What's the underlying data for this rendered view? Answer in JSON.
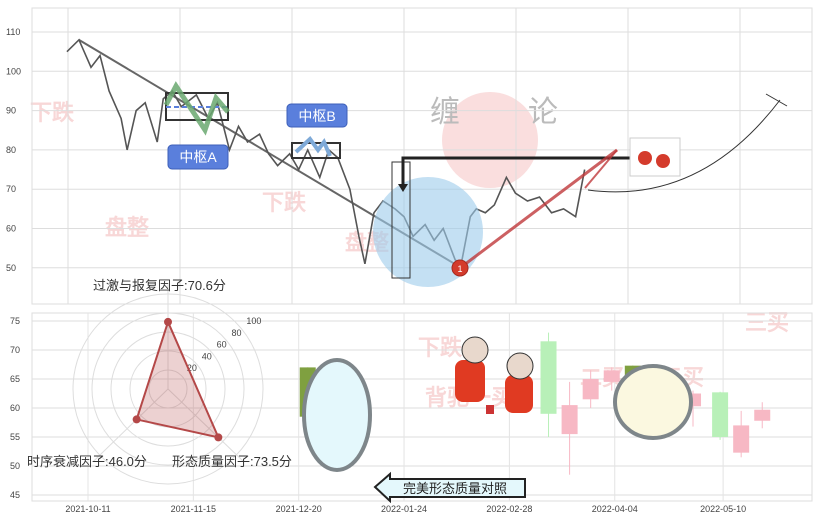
{
  "chart_data": [
    {
      "type": "line",
      "yticks": [
        50,
        60,
        70,
        80,
        90,
        100,
        110
      ],
      "ylim": [
        41,
        117
      ],
      "xticks": [
        "2021-10-11",
        "2021-11-15",
        "2021-12-20",
        "2022-01-24",
        "2022-02-28",
        "2022-04-04",
        "2022-05-10"
      ],
      "series": [
        {
          "points": [
            [
              "2021-10-04",
              105
            ],
            [
              "2021-10-08",
              108
            ],
            [
              "2021-10-12",
              101
            ],
            [
              "2021-10-15",
              104
            ],
            [
              "2021-10-18",
              95
            ],
            [
              "2021-10-22",
              88
            ],
            [
              "2021-10-24",
              80
            ],
            [
              "2021-10-27",
              90
            ],
            [
              "2021-10-30",
              92
            ],
            [
              "2021-11-03",
              82
            ],
            [
              "2021-11-05",
              93
            ],
            [
              "2021-11-08",
              95
            ],
            [
              "2021-11-11",
              91
            ],
            [
              "2021-11-16",
              94
            ],
            [
              "2021-11-20",
              88
            ],
            [
              "2021-11-23",
              92
            ],
            [
              "2021-11-27",
              80
            ],
            [
              "2021-11-30",
              86
            ],
            [
              "2021-12-03",
              82
            ],
            [
              "2021-12-07",
              84
            ],
            [
              "2021-12-10",
              79
            ],
            [
              "2021-12-13",
              76
            ],
            [
              "2021-12-17",
              79
            ],
            [
              "2021-12-20",
              75
            ],
            [
              "2021-12-23",
              80
            ],
            [
              "2021-12-27",
              73
            ],
            [
              "2021-12-30",
              80
            ],
            [
              "2022-01-02",
              78
            ],
            [
              "2022-01-06",
              70
            ],
            [
              "2022-01-09",
              58
            ],
            [
              "2022-01-11",
              51
            ],
            [
              "2022-01-14",
              64
            ],
            [
              "2022-01-17",
              67
            ],
            [
              "2022-01-21",
              65
            ],
            [
              "2022-01-24",
              63
            ],
            [
              "2022-01-27",
              58
            ],
            [
              "2022-01-31",
              61
            ],
            [
              "2022-02-03",
              57
            ],
            [
              "2022-02-06",
              60
            ],
            [
              "2022-02-10",
              52
            ],
            [
              "2022-02-12",
              51
            ],
            [
              "2022-02-15",
              63
            ],
            [
              "2022-02-17",
              65
            ],
            [
              "2022-02-20",
              64
            ],
            [
              "2022-02-23",
              66
            ],
            [
              "2022-02-27",
              73
            ],
            [
              "2022-03-02",
              69
            ],
            [
              "2022-03-06",
              67
            ],
            [
              "2022-03-10",
              68
            ],
            [
              "2022-03-14",
              64
            ],
            [
              "2022-03-18",
              65
            ],
            [
              "2022-03-22",
              63
            ],
            [
              "2022-03-25",
              75
            ]
          ]
        }
      ],
      "trendline": [
        [
          "2021-10-08",
          108
        ],
        [
          "2022-02-12",
          50
        ]
      ],
      "annotations": {
        "zhongshu_a": "中枢A",
        "zhongshu_b": "中枢B",
        "buy_marker": "1"
      },
      "grid": true
    },
    {
      "type": "candlestick",
      "yticks": [
        45,
        50,
        55,
        60,
        65,
        70,
        75
      ],
      "ylim": [
        44,
        76
      ],
      "xticks": [
        "2021-10-11",
        "2021-11-15",
        "2021-12-20",
        "2022-01-24",
        "2022-02-28",
        "2022-04-04",
        "2022-05-10"
      ],
      "candles": [
        {
          "date": "2021-12-23",
          "open": 67,
          "close": 58.5,
          "high": 67,
          "low": 58.3,
          "color": "#7fa040"
        },
        {
          "date": "2021-12-29",
          "open": 58.5,
          "close": 51,
          "high": 58.6,
          "low": 51,
          "color": "#b44848"
        },
        {
          "date": "2022-03-13",
          "open": 71.5,
          "close": 59,
          "high": 73,
          "low": 55,
          "color": "#b8f0b8"
        },
        {
          "date": "2022-03-20",
          "open": 60.5,
          "close": 55.5,
          "high": 64.5,
          "low": 48.5,
          "color": "#f7b8c4"
        },
        {
          "date": "2022-03-27",
          "open": 65,
          "close": 61.5,
          "high": 66.5,
          "low": 60,
          "color": "#f7b8c4"
        },
        {
          "date": "2022-04-03",
          "open": 66.5,
          "close": 64.5,
          "high": 67,
          "low": 63,
          "color": "#f7b8c4"
        },
        {
          "date": "2022-04-10",
          "open": 67.3,
          "close": 60.5,
          "high": 67.3,
          "low": 59,
          "color": "#7fa040"
        },
        {
          "date": "2022-04-17",
          "open": 61.5,
          "close": 56.8,
          "high": 61.7,
          "low": 56.7,
          "color": "#b44848"
        },
        {
          "date": "2022-04-30",
          "open": 62.5,
          "close": 60.3,
          "high": 63,
          "low": 56.8,
          "color": "#f7b8c4"
        },
        {
          "date": "2022-05-09",
          "open": 62.7,
          "close": 55,
          "high": 62.8,
          "low": 54.5,
          "color": "#b8f0b8"
        },
        {
          "date": "2022-05-16",
          "open": 57,
          "close": 52.3,
          "high": 59.5,
          "low": 51.5,
          "color": "#f7b8c4"
        },
        {
          "date": "2022-05-23",
          "open": 59.7,
          "close": 57.8,
          "high": 61,
          "low": 56.5,
          "color": "#f7b8c4"
        }
      ],
      "callout": "完美形态质量对照"
    },
    {
      "type": "radar",
      "rings": [
        20,
        40,
        60,
        80,
        100
      ],
      "axes": [
        {
          "label": "过激与报复因子:70.6分",
          "value": 70.6
        },
        {
          "label": "形态质量因子:73.5分",
          "value": 73.5
        },
        {
          "label": "时序衰减因子:46.0分",
          "value": 46.0
        }
      ]
    }
  ],
  "watermarks": {
    "chanlun_left": "缠",
    "chanlun_right": "论",
    "down1": "下跌",
    "down2": "下跌",
    "consol1": "盘整",
    "consol2": "盘整",
    "beichi": "背驰一买",
    "buy2": "二买",
    "buy3": "三买",
    "down3": "下跌"
  },
  "colors": {
    "line": "#555",
    "trend": "#666",
    "red_line": "#c0393b",
    "label_box": "#5a7fdc",
    "circle": "#9ccbeb"
  }
}
